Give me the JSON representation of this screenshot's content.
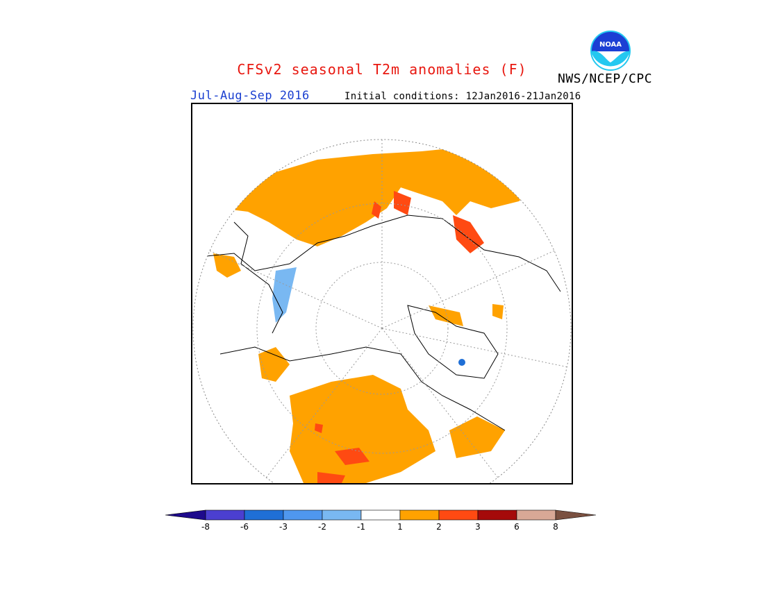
{
  "header": {
    "title": "CFSv2 seasonal T2m anomalies (F)",
    "period": "Jul-Aug-Sep 2016",
    "initial_conditions": "Initial conditions: 12Jan2016-21Jan2016",
    "agency": "NWS/NCEP/CPC",
    "logo_text": "NOAA"
  },
  "legend": {
    "tick_labels": [
      "-8",
      "-6",
      "-3",
      "-2",
      "-1",
      "1",
      "2",
      "3",
      "6",
      "8"
    ],
    "bins": [
      {
        "range": "< -8",
        "color": "#1e0a8c"
      },
      {
        "range": "-8 to -6",
        "color": "#4b3fd0"
      },
      {
        "range": "-6 to -3",
        "color": "#1f6fd6"
      },
      {
        "range": "-3 to -2",
        "color": "#4f97ee"
      },
      {
        "range": "-2 to -1",
        "color": "#79b8f2"
      },
      {
        "range": "-1 to 1",
        "color": "#ffffff"
      },
      {
        "range": "1 to 2",
        "color": "#ffa200"
      },
      {
        "range": "2 to 3",
        "color": "#ff4a12"
      },
      {
        "range": "3 to 6",
        "color": "#a50a0a"
      },
      {
        "range": "6 to 8",
        "color": "#d8a896"
      },
      {
        "range": "> 8",
        "color": "#7a5040"
      }
    ]
  },
  "map": {
    "projection": "north-polar-stereographic",
    "variable": "2m temperature anomaly",
    "units": "F"
  }
}
